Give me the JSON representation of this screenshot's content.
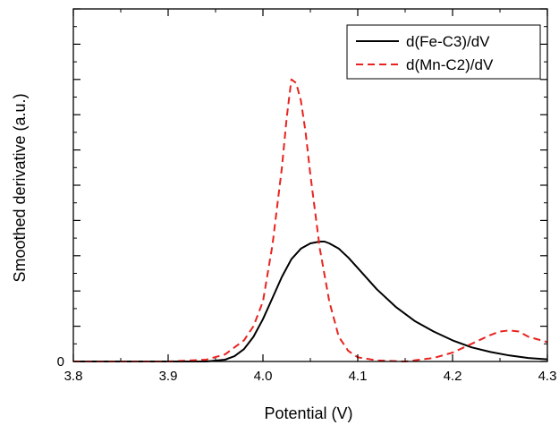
{
  "chart_data": {
    "type": "line",
    "title": "",
    "xlabel": "Potential (V)",
    "ylabel": "Smoothed derivative  (a.u.)",
    "xlim": [
      3.8,
      4.3
    ],
    "ylim": [
      0,
      1.0
    ],
    "x_ticks": [
      "3.8",
      "3.9",
      "4.0",
      "4.1",
      "4.2",
      "4.3"
    ],
    "y_ticks": [
      "0"
    ],
    "grid": false,
    "legend_position": "top-right",
    "series": [
      {
        "name": "d(Fe-C3)/dV",
        "color": "#000000",
        "style": "solid",
        "x": [
          3.8,
          3.85,
          3.9,
          3.94,
          3.96,
          3.97,
          3.98,
          3.99,
          4.0,
          4.01,
          4.02,
          4.03,
          4.04,
          4.05,
          4.06,
          4.065,
          4.07,
          4.08,
          4.09,
          4.1,
          4.12,
          4.14,
          4.16,
          4.18,
          4.2,
          4.22,
          4.24,
          4.26,
          4.28,
          4.3
        ],
        "y": [
          0.0,
          0.0,
          0.0,
          0.0,
          0.005,
          0.015,
          0.035,
          0.07,
          0.12,
          0.18,
          0.24,
          0.29,
          0.32,
          0.335,
          0.34,
          0.34,
          0.335,
          0.32,
          0.295,
          0.265,
          0.205,
          0.155,
          0.115,
          0.085,
          0.06,
          0.04,
          0.027,
          0.017,
          0.01,
          0.006
        ]
      },
      {
        "name": "d(Mn-C2)/dV",
        "color": "#e8231f",
        "style": "dashed",
        "x": [
          3.8,
          3.9,
          3.94,
          3.96,
          3.98,
          3.99,
          4.0,
          4.01,
          4.02,
          4.025,
          4.03,
          4.035,
          4.04,
          4.045,
          4.05,
          4.06,
          4.07,
          4.08,
          4.09,
          4.1,
          4.12,
          4.15,
          4.18,
          4.2,
          4.22,
          4.24,
          4.25,
          4.26,
          4.27,
          4.28,
          4.3
        ],
        "y": [
          0.0,
          0.0,
          0.005,
          0.02,
          0.06,
          0.1,
          0.17,
          0.33,
          0.55,
          0.69,
          0.8,
          0.79,
          0.74,
          0.65,
          0.53,
          0.32,
          0.17,
          0.07,
          0.03,
          0.012,
          0.003,
          0.0,
          0.01,
          0.025,
          0.05,
          0.075,
          0.085,
          0.088,
          0.085,
          0.07,
          0.055
        ]
      }
    ]
  }
}
